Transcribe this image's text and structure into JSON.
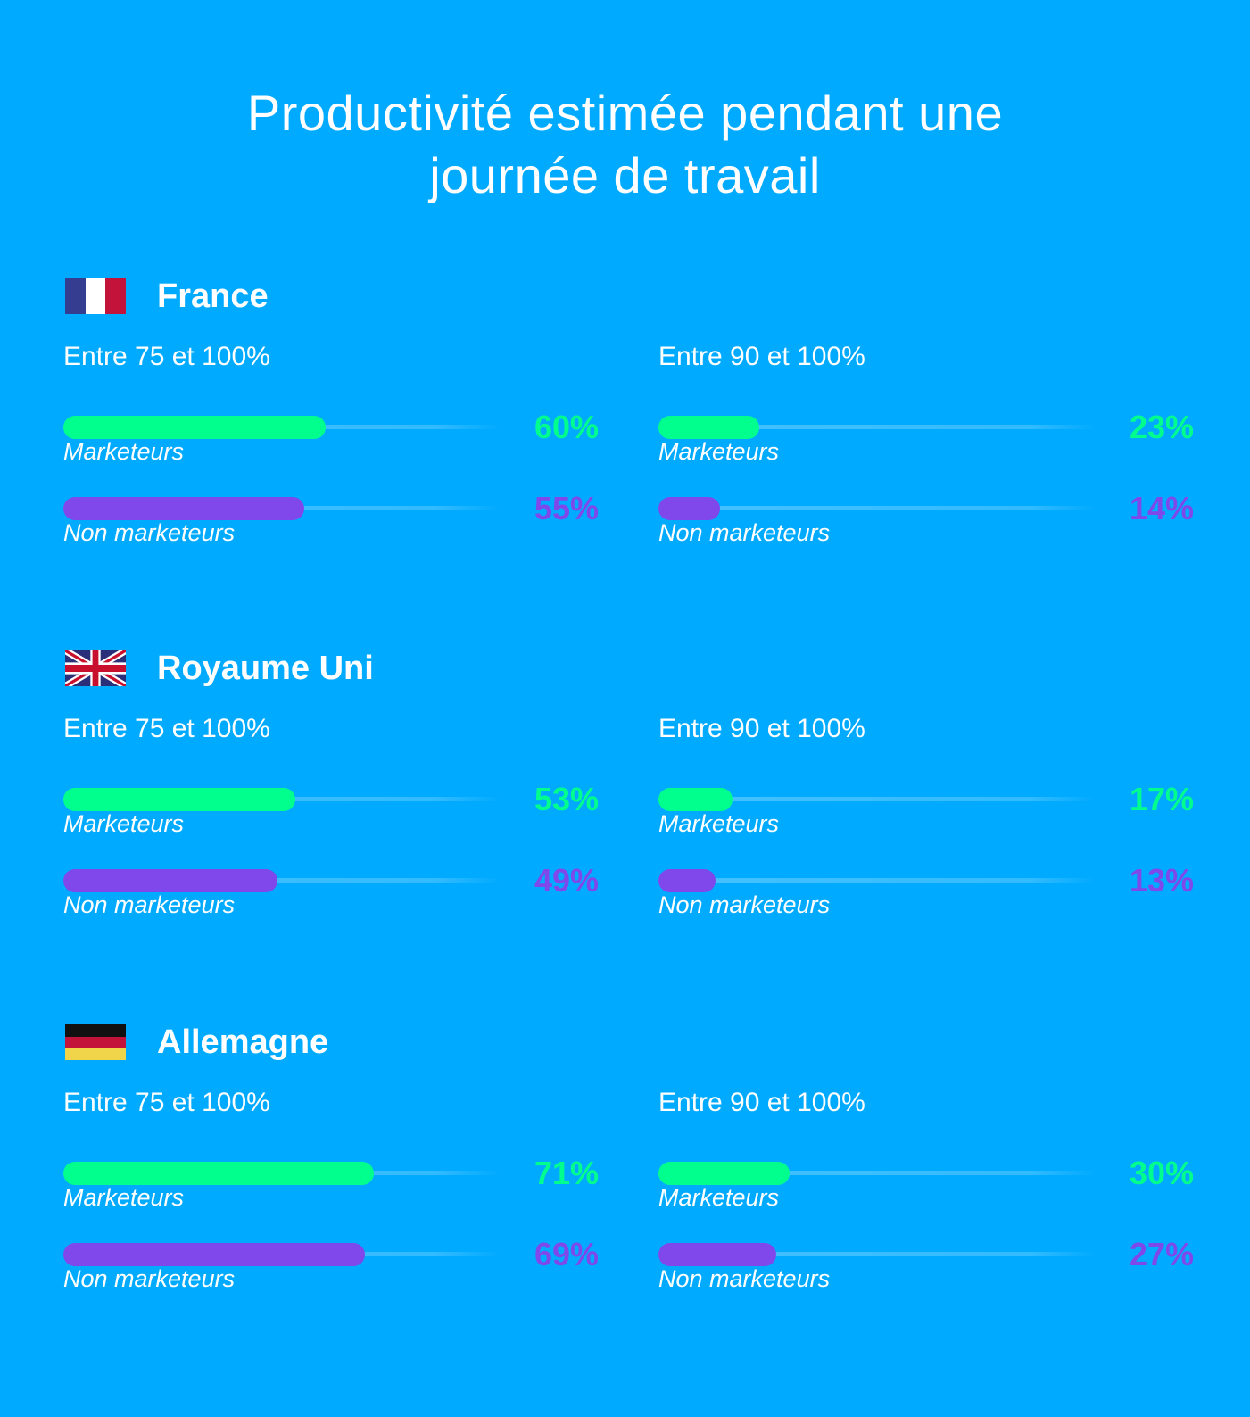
{
  "title_line1": "Productivité estimée pendant une",
  "title_line2": "journée de travail",
  "colors": {
    "background": "#00aaff",
    "marketeurs": "#00ff8c",
    "non_marketeurs": "#8048ea",
    "text": "#ffffff"
  },
  "chart_data": {
    "type": "bar",
    "orientation": "horizontal",
    "xlim": [
      0,
      100
    ],
    "unit": "%",
    "series_names": [
      "Marketeurs",
      "Non marketeurs"
    ],
    "countries": [
      {
        "name": "France",
        "flag": "flag-france-icon",
        "groups": [
          {
            "label": "Entre 75 et 100%",
            "series": [
              {
                "name": "Marketeurs",
                "value": 60,
                "value_label": "60%"
              },
              {
                "name": "Non marketeurs",
                "value": 55,
                "value_label": "55%"
              }
            ]
          },
          {
            "label": "Entre 90 et 100%",
            "series": [
              {
                "name": "Marketeurs",
                "value": 23,
                "value_label": "23%"
              },
              {
                "name": "Non marketeurs",
                "value": 14,
                "value_label": "14%"
              }
            ]
          }
        ]
      },
      {
        "name": "Royaume Uni",
        "flag": "flag-uk-icon",
        "groups": [
          {
            "label": "Entre 75 et 100%",
            "series": [
              {
                "name": "Marketeurs",
                "value": 53,
                "value_label": "53%"
              },
              {
                "name": "Non marketeurs",
                "value": 49,
                "value_label": "49%"
              }
            ]
          },
          {
            "label": "Entre 90 et 100%",
            "series": [
              {
                "name": "Marketeurs",
                "value": 17,
                "value_label": "17%"
              },
              {
                "name": "Non marketeurs",
                "value": 13,
                "value_label": "13%"
              }
            ]
          }
        ]
      },
      {
        "name": "Allemagne",
        "flag": "flag-germany-icon",
        "groups": [
          {
            "label": "Entre 75 et 100%",
            "series": [
              {
                "name": "Marketeurs",
                "value": 71,
                "value_label": "71%"
              },
              {
                "name": "Non marketeurs",
                "value": 69,
                "value_label": "69%"
              }
            ]
          },
          {
            "label": "Entre 90 et 100%",
            "series": [
              {
                "name": "Marketeurs",
                "value": 30,
                "value_label": "30%"
              },
              {
                "name": "Non marketeurs",
                "value": 27,
                "value_label": "27%"
              }
            ]
          }
        ]
      }
    ]
  }
}
